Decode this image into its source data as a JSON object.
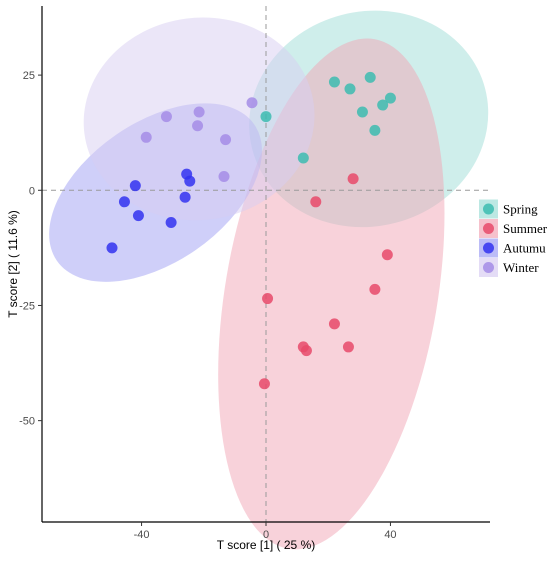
{
  "chart_data": {
    "type": "scatter",
    "xlabel": "T score [1] ( 25 %)",
    "ylabel": "T score [2] ( 11.6 %)",
    "xlim": [
      -72,
      72
    ],
    "ylim": [
      -72,
      40
    ],
    "x_ticks": [
      -40,
      0,
      40
    ],
    "y_ticks": [
      25,
      0,
      -25,
      -50
    ],
    "x_tick_labels": [
      "-40",
      "0",
      "40"
    ],
    "y_tick_labels": [
      "25",
      "0",
      "-25",
      "-50"
    ],
    "grid": false,
    "reference_lines": {
      "x": 0,
      "y": 0,
      "style": "dashed"
    },
    "legend_position": "right",
    "series": [
      {
        "name": "Spring",
        "color": "#3cbcb0",
        "ellipse_color": "#9fded7",
        "points": [
          [
            22,
            23.5
          ],
          [
            27,
            22
          ],
          [
            33.5,
            24.5
          ],
          [
            37.5,
            18.5
          ],
          [
            40,
            20
          ],
          [
            31,
            17
          ],
          [
            35,
            13
          ],
          [
            12,
            7
          ],
          [
            0,
            16
          ]
        ],
        "ellipse": {
          "cx": 33,
          "cy": 15.5,
          "rx": 38,
          "ry": 23.5,
          "angle_deg": 10
        }
      },
      {
        "name": "Summer",
        "color": "#e84a6a",
        "ellipse_color": "#f2a6b6",
        "points": [
          [
            28,
            2.5
          ],
          [
            16,
            -2.5
          ],
          [
            39,
            -14
          ],
          [
            35,
            -21.5
          ],
          [
            0.5,
            -23.5
          ],
          [
            22,
            -29
          ],
          [
            12,
            -34
          ],
          [
            13,
            -34.8
          ],
          [
            26.5,
            -34
          ],
          [
            -0.5,
            -42
          ]
        ],
        "ellipse": {
          "cx": 21,
          "cy": -22.5,
          "rx": 57,
          "ry": 33,
          "angle_deg": 76
        }
      },
      {
        "name": "Autumu",
        "color": "#3232f0",
        "ellipse_color": "#a0a0f4",
        "points": [
          [
            -25.5,
            3.5
          ],
          [
            -24.5,
            2
          ],
          [
            -42,
            1
          ],
          [
            -26,
            -1.5
          ],
          [
            -45.5,
            -2.5
          ],
          [
            -41,
            -5.5
          ],
          [
            -30.5,
            -7
          ],
          [
            -49.5,
            -12.5
          ]
        ],
        "ellipse": {
          "cx": -35.5,
          "cy": -0.5,
          "rx": 35,
          "ry": 16,
          "angle_deg": 25
        }
      },
      {
        "name": "Winter",
        "color": "#a58ce6",
        "ellipse_color": "#d8cdf2",
        "points": [
          [
            -4.5,
            19
          ],
          [
            -32,
            16
          ],
          [
            -21.5,
            17
          ],
          [
            -22,
            14
          ],
          [
            -38.5,
            11.5
          ],
          [
            -13,
            11
          ],
          [
            -13.5,
            3
          ]
        ],
        "ellipse": {
          "cx": -21.5,
          "cy": 15.5,
          "rx": 37,
          "ry": 22,
          "angle_deg": 5
        }
      }
    ]
  }
}
